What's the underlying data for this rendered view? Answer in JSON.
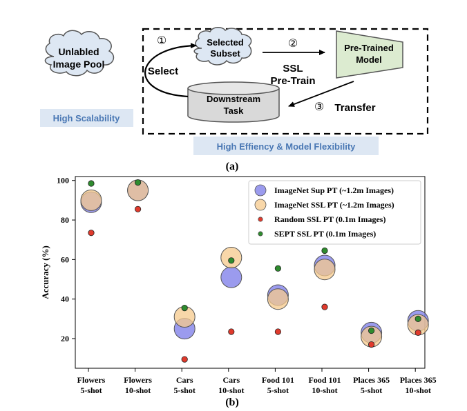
{
  "diagram": {
    "pool_label_line1": "Unlabled",
    "pool_label_line2": "Image Pool",
    "subset_label_line1": "Selected",
    "subset_label_line2": "Subset",
    "model_label_line1": "Pre-Trained",
    "model_label_line2": "Model",
    "task_label_line1": "Downstream",
    "task_label_line2": "Task",
    "step1_marker": "①",
    "step2_marker": "②",
    "step3_marker": "③",
    "select_label": "Select",
    "ssl_label_line1": "SSL",
    "ssl_label_line2": "Pre-Train",
    "transfer_label": "Transfer",
    "scalability_tag": "High Scalability",
    "efficiency_tag": "High Effiency & Model Flexibility",
    "caption": "(a)",
    "colors": {
      "cloud_fill": "#dde7f3",
      "model_fill": "#dcebd0",
      "task_fill": "#d9d9d9",
      "tag_fill": "#dde7f3",
      "tag_text": "#4a78b4"
    }
  },
  "chart_data": {
    "type": "scatter",
    "categories": [
      "Flowers\n5-shot",
      "Flowers\n10-shot",
      "Cars\n5-shot",
      "Cars\n10-shot",
      "Food 101\n5-shot",
      "Food 101\n10-shot",
      "Places 365\n5-shot",
      "Places 365\n10-shot"
    ],
    "ylabel": "Accuracy (%)",
    "yticks": [
      20,
      40,
      60,
      80,
      100
    ],
    "ylim": [
      5,
      102
    ],
    "legend_position": "top-right",
    "caption": "(b)",
    "series": [
      {
        "name": "ImageNet Sup PT (~1.2m Images)",
        "marker": "large",
        "color": "#7a7ae8",
        "values": [
          89,
          95,
          25,
          51,
          42,
          57,
          23,
          29
        ]
      },
      {
        "name": "ImageNet SSL PT (~1.2m Images)",
        "marker": "large",
        "color": "#f5c98c",
        "values": [
          90,
          95,
          31,
          61,
          40,
          55,
          21,
          27
        ]
      },
      {
        "name": "Random SSL PT (0.1m Images)",
        "marker": "small",
        "color": "#e03a2c",
        "values": [
          73.5,
          85.5,
          9.5,
          23.5,
          23.5,
          36,
          17,
          23
        ]
      },
      {
        "name": "SEPT SSL PT (0.1m Images)",
        "marker": "small",
        "color": "#2e8b2e",
        "values": [
          98.5,
          99,
          35.5,
          59.5,
          55.5,
          64.5,
          24,
          30
        ]
      }
    ]
  }
}
